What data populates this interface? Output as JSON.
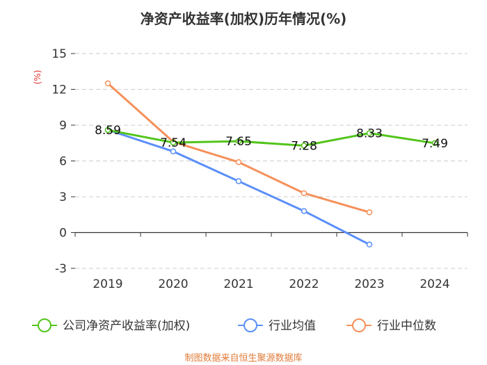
{
  "chart_data": {
    "type": "line",
    "title": "净资产收益率(加权)历年情况(%)",
    "ylabel": "(%)",
    "xlabel": "",
    "categories": [
      "2019",
      "2020",
      "2021",
      "2022",
      "2023",
      "2024"
    ],
    "ylim": [
      -3,
      15
    ],
    "yticks": [
      15,
      12,
      9,
      6,
      3,
      0,
      -3
    ],
    "grid": true,
    "legend_position": "bottom",
    "series": [
      {
        "name": "公司净资产收益率(加权)",
        "color": "#52c41a",
        "values": [
          8.59,
          7.54,
          7.65,
          7.28,
          8.33,
          7.49
        ],
        "labels": [
          "8.59",
          "7.54",
          "7.65",
          "7.28",
          "8.33",
          "7.49"
        ]
      },
      {
        "name": "行业均值",
        "color": "#5b8ff9",
        "values": [
          8.6,
          6.8,
          4.3,
          1.8,
          -1.0,
          null
        ]
      },
      {
        "name": "行业中位数",
        "color": "#f5905a",
        "values": [
          12.5,
          7.6,
          5.9,
          3.3,
          1.7,
          null
        ]
      }
    ]
  },
  "footer": {
    "source": "制图数据来自恒生聚源数据库"
  }
}
